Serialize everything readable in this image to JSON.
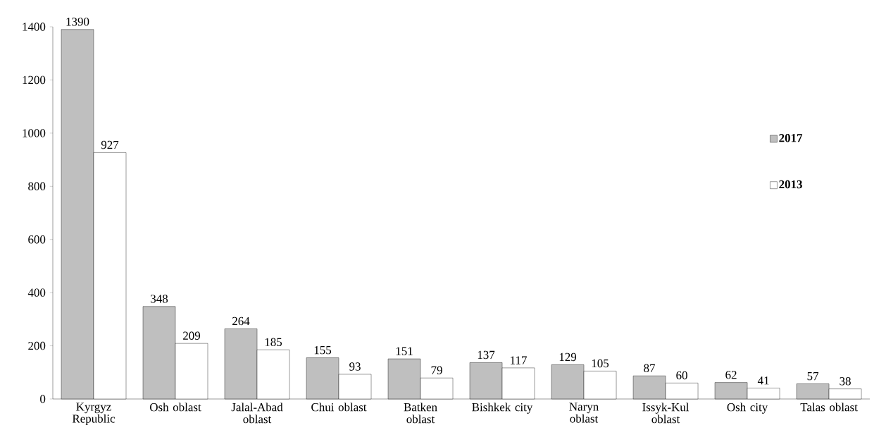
{
  "chart_data": {
    "type": "bar",
    "categories": [
      "Kyrgyz Republic",
      "Osh oblast",
      "Jalal-Abad oblast",
      "Chui oblast",
      "Batken oblast",
      "Bishkek city",
      "Naryn oblast",
      "Issyk-Kul oblast",
      "Osh city",
      "Talas oblast"
    ],
    "series": [
      {
        "name": "2017",
        "color": "#bfbfbf",
        "values": [
          1390,
          348,
          264,
          155,
          151,
          137,
          129,
          87,
          62,
          57
        ]
      },
      {
        "name": "2013",
        "color": "#ffffff",
        "values": [
          927,
          209,
          185,
          93,
          79,
          117,
          105,
          60,
          41,
          38
        ]
      }
    ],
    "ylim": [
      0,
      1400
    ],
    "yticks": [
      0,
      200,
      400,
      600,
      800,
      1000,
      1200,
      1400
    ],
    "data_labels": true,
    "legend": "right",
    "grid": false
  }
}
